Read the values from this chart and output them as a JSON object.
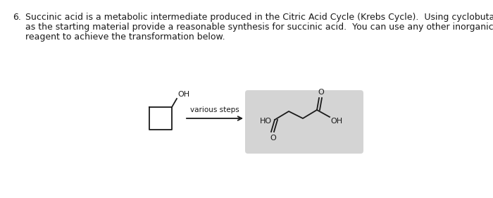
{
  "background_color": "#ffffff",
  "fig_width": 7.0,
  "fig_height": 2.81,
  "dpi": 100,
  "text_color": "#1a1a1a",
  "question_number": "6.",
  "question_text_line1": "Succinic acid is a metabolic intermediate produced in the Citric Acid Cycle (Krebs Cycle).  Using cyclobutanol",
  "question_text_line2": "as the starting material provide a reasonable synthesis for succinic acid.  You can use any other inorganic",
  "question_text_line3": "reagent to achieve the transformation below.",
  "arrow_label": "various steps",
  "reactant_OH_label": "OH",
  "product_HO_label": "HO",
  "product_OH_label": "OH",
  "product_O_top_label": "O",
  "product_O_bottom_label": "O",
  "product_box_color": "#d4d4d4",
  "font_size_text": 9.0,
  "font_size_labels": 8.0,
  "font_size_small_labels": 7.5
}
